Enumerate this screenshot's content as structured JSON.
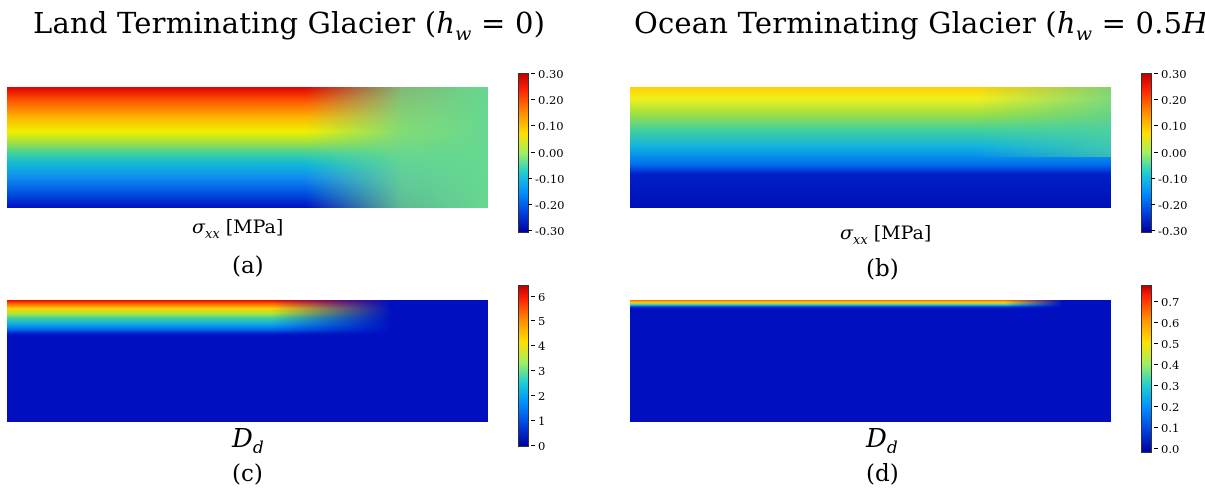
{
  "titles": {
    "left": {
      "prefix": "Land Terminating Glacier (",
      "var": "h",
      "sub": "w",
      "suffix": " = 0)"
    },
    "right": {
      "prefix": "Ocean Terminating Glacier (",
      "var": "h",
      "sub": "w",
      "suffix": " = 0.5",
      "tail_var": "H",
      "close": ")"
    }
  },
  "panels": {
    "a": {
      "quantity": {
        "var": "σ",
        "sub": "xx",
        "unit": "[MPa]"
      },
      "tag": "(a)",
      "colorbar": {
        "min": -0.3,
        "max": 0.3,
        "ticks": [
          "0.30",
          "0.20",
          "0.10",
          "0.00",
          "-0.10",
          "-0.20",
          "-0.30"
        ]
      }
    },
    "b": {
      "quantity": {
        "var": "σ",
        "sub": "xx",
        "unit": "[MPa]"
      },
      "tag": "(b)",
      "colorbar": {
        "min": -0.3,
        "max": 0.3,
        "ticks": [
          "0.30",
          "0.20",
          "0.10",
          "0.00",
          "-0.10",
          "-0.20",
          "-0.30"
        ]
      }
    },
    "c": {
      "quantity": {
        "var": "D",
        "sub": "d"
      },
      "tag": "(c)",
      "colorbar": {
        "min": 0,
        "max": 6.5,
        "ticks": [
          "6",
          "5",
          "4",
          "3",
          "2",
          "1",
          "0"
        ]
      }
    },
    "d": {
      "quantity": {
        "var": "D",
        "sub": "d"
      },
      "tag": "(d)",
      "colorbar": {
        "min": 0,
        "max": 0.78,
        "ticks": [
          "0.7",
          "0.6",
          "0.5",
          "0.4",
          "0.3",
          "0.2",
          "0.1",
          "0.0"
        ]
      }
    }
  },
  "colormap": "jet"
}
